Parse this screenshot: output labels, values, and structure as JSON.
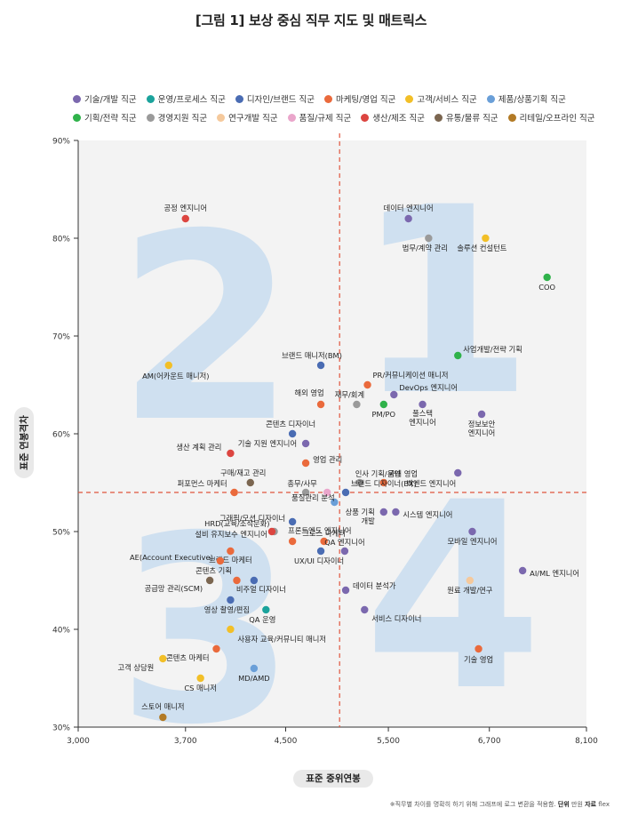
{
  "title": "[그림 1] 보상 중심 직무 지도 및 매트릭스",
  "footnote": {
    "note": "※직무별 차이를 명확히 하기 위해 그래프에 로그 변환을 적용함.",
    "unit_label": "단위",
    "unit_value": "만원",
    "source_label": "자료",
    "source_value": "flex"
  },
  "legend": [
    {
      "name": "기술/개발 직군",
      "color": "#7b68ae"
    },
    {
      "name": "운영/프로세스 직군",
      "color": "#1ba39c"
    },
    {
      "name": "디자인/브랜드 직군",
      "color": "#4a6cb3"
    },
    {
      "name": "마케팅/영업 직군",
      "color": "#ea6a3c"
    },
    {
      "name": "고객/서비스 직군",
      "color": "#f2bf27"
    },
    {
      "name": "제품/상품기획 직군",
      "color": "#6a9fd8"
    },
    {
      "name": "기획/전략 직군",
      "color": "#2fb24a"
    },
    {
      "name": "경영지원 직군",
      "color": "#9a9a9a"
    },
    {
      "name": "연구개발 직군",
      "color": "#f5c99c"
    },
    {
      "name": "품질/규제 직군",
      "color": "#eaa6cb"
    },
    {
      "name": "생산/제조 직군",
      "color": "#dc4540"
    },
    {
      "name": "유통/물류 직군",
      "color": "#7b6650"
    },
    {
      "name": "리테일/오프라인 직군",
      "color": "#b27a25"
    }
  ],
  "chart_data": {
    "type": "scatter",
    "title": "[그림 1] 보상 중심 직무 지도 및 매트릭스",
    "xlabel": "표준 중위연봉",
    "ylabel": "표준 연봉격차",
    "x_scale": "log",
    "xlim": [
      3000,
      8100
    ],
    "ylim": [
      30,
      90
    ],
    "x_ticks": [
      "3,000",
      "3,700",
      "4,500",
      "5,500",
      "6,700",
      "8,100"
    ],
    "y_ticks": [
      "30%",
      "40%",
      "50%",
      "60%",
      "70%",
      "80%",
      "90%"
    ],
    "ref_lines": {
      "x": 5000,
      "y": 54
    },
    "quadrant_labels": [
      "1",
      "2",
      "3",
      "4"
    ],
    "points": [
      {
        "label": "공정 엔지니어",
        "x": 3700,
        "y": 82,
        "group": 10
      },
      {
        "label": "데이터 엔지니어",
        "x": 5720,
        "y": 82,
        "group": 0
      },
      {
        "label": "법무/계약 관리",
        "x": 5950,
        "y": 80,
        "group": 7
      },
      {
        "label": "솔루션 컨설턴트",
        "x": 6650,
        "y": 80,
        "group": 4
      },
      {
        "label": "COO",
        "x": 7500,
        "y": 76,
        "group": 6
      },
      {
        "label": "사업개발/전략 기획",
        "x": 6300,
        "y": 68,
        "group": 6
      },
      {
        "label": "AM(어카운트 매니저)",
        "x": 3580,
        "y": 67,
        "group": 4
      },
      {
        "label": "브랜드 매니저(BM)",
        "x": 4820,
        "y": 67,
        "group": 2
      },
      {
        "label": "PR/커뮤니케이션 매니저",
        "x": 5280,
        "y": 65,
        "group": 3
      },
      {
        "label": "DevOps 엔지니어",
        "x": 5560,
        "y": 64,
        "group": 0
      },
      {
        "label": "해외 영업",
        "x": 4820,
        "y": 63,
        "group": 3
      },
      {
        "label": "재무/회계",
        "x": 5170,
        "y": 63,
        "group": 7
      },
      {
        "label": "PM/PO",
        "x": 5450,
        "y": 63,
        "group": 6
      },
      {
        "label": "풀스택 엔지니어",
        "x": 5880,
        "y": 63,
        "group": 0
      },
      {
        "label": "정보보안 엔지니어",
        "x": 6600,
        "y": 62,
        "group": 0
      },
      {
        "label": "콘텐츠 디자이너",
        "x": 4560,
        "y": 60,
        "group": 2
      },
      {
        "label": "생산 계획 관리",
        "x": 4040,
        "y": 58,
        "group": 10
      },
      {
        "label": "기술 지원 엔지니어",
        "x": 4680,
        "y": 59,
        "group": 0
      },
      {
        "label": "영업 관리",
        "x": 4680,
        "y": 57,
        "group": 3
      },
      {
        "label": "인사 기획/운영",
        "x": 5200,
        "y": 55,
        "group": 7
      },
      {
        "label": "국내 영업",
        "x": 5450,
        "y": 55,
        "group": 3
      },
      {
        "label": "백엔드 엔지니어",
        "x": 6300,
        "y": 56,
        "group": 0
      },
      {
        "label": "구매/재고 관리",
        "x": 4200,
        "y": 55,
        "group": 11
      },
      {
        "label": "퍼포먼스 마케터",
        "x": 4070,
        "y": 54,
        "group": 3
      },
      {
        "label": "총무/사무",
        "x": 4680,
        "y": 54,
        "group": 7
      },
      {
        "label": "품질 규제",
        "x": 4880,
        "y": 54,
        "group": 9
      },
      {
        "label": "브랜드 디자이너(BX)",
        "x": 5060,
        "y": 54,
        "group": 2
      },
      {
        "label": "품질관리 분석",
        "x": 4950,
        "y": 53,
        "group": 5
      },
      {
        "label": "상품 기획 개발",
        "x": 5450,
        "y": 52,
        "group": 0
      },
      {
        "label": "시스템 엔지니어",
        "x": 5580,
        "y": 52,
        "group": 0
      },
      {
        "label": "그래픽/모션 디자이너",
        "x": 4560,
        "y": 51,
        "group": 2
      },
      {
        "label": "HRD(교육/조직문화)",
        "x": 4400,
        "y": 50,
        "group": 7
      },
      {
        "label": "설비 유지보수 엔지니어",
        "x": 4380,
        "y": 50,
        "group": 10
      },
      {
        "label": "모바일 엔지니어",
        "x": 6480,
        "y": 50,
        "group": 0
      },
      {
        "label": "프론트엔드 엔지니어",
        "x": 4560,
        "y": 49,
        "group": 3
      },
      {
        "label": "그로스 마케터",
        "x": 4850,
        "y": 49,
        "group": 3
      },
      {
        "label": "브랜드 마케터",
        "x": 4040,
        "y": 48,
        "group": 3
      },
      {
        "label": "UX/UI 디자이너",
        "x": 4820,
        "y": 48,
        "group": 2
      },
      {
        "label": "QA 엔지니어",
        "x": 5050,
        "y": 48,
        "group": 0
      },
      {
        "label": "AE(Account Executive)",
        "x": 3960,
        "y": 47,
        "group": 3
      },
      {
        "label": "AI/ML 엔지니어",
        "x": 7150,
        "y": 46,
        "group": 0
      },
      {
        "label": "콘텐츠 기획",
        "x": 4090,
        "y": 45,
        "group": 3
      },
      {
        "label": "공급망 관리(SCM)",
        "x": 3880,
        "y": 45,
        "group": 11
      },
      {
        "label": "비주얼 디자이너",
        "x": 4230,
        "y": 45,
        "group": 2
      },
      {
        "label": "원료 개발/연구",
        "x": 6450,
        "y": 45,
        "group": 8
      },
      {
        "label": "데이터 분석가",
        "x": 5060,
        "y": 44,
        "group": 0
      },
      {
        "label": "영상 촬영/편집",
        "x": 4040,
        "y": 43,
        "group": 2
      },
      {
        "label": "QA 운영",
        "x": 4330,
        "y": 42,
        "group": 1
      },
      {
        "label": "서비스 디자이너",
        "x": 5250,
        "y": 42,
        "group": 0
      },
      {
        "label": "사용자 교육/커뮤니티 매니저",
        "x": 4040,
        "y": 40,
        "group": 4
      },
      {
        "label": "콘텐츠 마케터",
        "x": 3930,
        "y": 38,
        "group": 3
      },
      {
        "label": "기술 영업",
        "x": 6560,
        "y": 38,
        "group": 3
      },
      {
        "label": "고객 상담원",
        "x": 3540,
        "y": 37,
        "group": 4
      },
      {
        "label": "MD/AMD",
        "x": 4230,
        "y": 36,
        "group": 5
      },
      {
        "label": "CS 매니저",
        "x": 3810,
        "y": 35,
        "group": 4
      },
      {
        "label": "스토어 매니저",
        "x": 3540,
        "y": 31,
        "group": 12
      }
    ]
  }
}
